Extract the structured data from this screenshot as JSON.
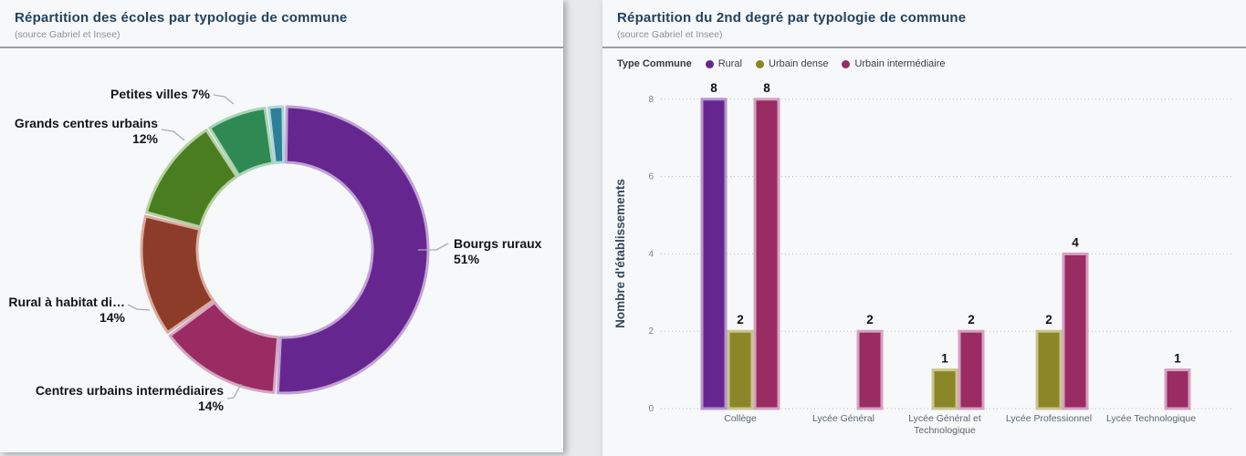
{
  "panels": {
    "pie": {
      "title": "Répartition des écoles par typologie de commune",
      "subtitle": "(source Gabriel et Insee)"
    },
    "bar": {
      "title": "Répartition du 2nd degré par typologie de commune",
      "subtitle": "(source Gabriel et Insee)",
      "legend_title": "Type Commune"
    }
  },
  "chart_data": [
    {
      "type": "pie",
      "title": "Répartition des écoles par typologie de commune",
      "subtitle": "(source Gabriel et Insee)",
      "donut": true,
      "slices": [
        {
          "label": "Bourgs ruraux",
          "pct": 51,
          "color": "#65278f",
          "border": "#c2a2d5"
        },
        {
          "label": "Centres urbains intermédiaires",
          "pct": 14,
          "color": "#9a2b63",
          "border": "#d5a5c3"
        },
        {
          "label": "Rural à habitat di…",
          "pct": 14,
          "color": "#8e3c2a",
          "border": "#daaca0"
        },
        {
          "label": "Grands centres urbains",
          "pct": 12,
          "color": "#4a7d20",
          "border": "#b5d1a0"
        },
        {
          "label": "Petites villes",
          "pct": 7,
          "color": "#2e8a52",
          "border": "#aad3b9"
        },
        {
          "label": "",
          "pct": 2,
          "color": "#2d7e99",
          "border": "#b0d6da"
        }
      ]
    },
    {
      "type": "bar",
      "categories": [
        "Collège",
        "Lycée Général",
        "Lycée Général et Technologique",
        "Lycée Professionnel",
        "Lycée Technologique"
      ],
      "series": [
        {
          "name": "Rural",
          "color": "#65278f",
          "border": "#b593cd",
          "values": [
            8,
            null,
            null,
            null,
            null
          ]
        },
        {
          "name": "Urbain dense",
          "color": "#8b8628",
          "border": "#cbc690",
          "values": [
            2,
            null,
            1,
            2,
            null
          ]
        },
        {
          "name": "Urbain intermédiaire",
          "color": "#9a2b63",
          "border": "#d4a2c0",
          "values": [
            8,
            2,
            2,
            4,
            1
          ]
        }
      ],
      "ylabel": "Nombre d'établissements",
      "yticks": [
        0,
        2,
        4,
        6,
        8
      ],
      "ylim": [
        0,
        8
      ],
      "grid": "dotted",
      "legend_position": "top"
    }
  ]
}
